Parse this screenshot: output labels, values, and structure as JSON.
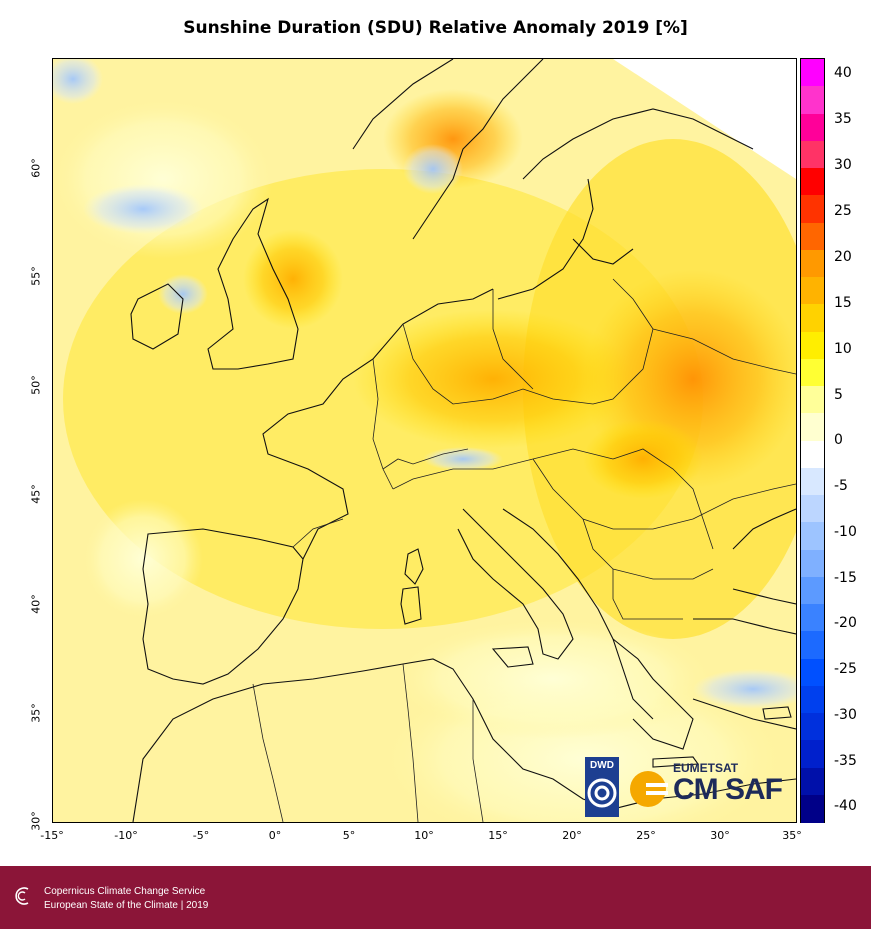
{
  "title": "Sunshine Duration (SDU) Relative Anomaly 2019 [%]",
  "axes": {
    "x_ticks": [
      "-15°",
      "-10°",
      "-5°",
      "0°",
      "5°",
      "10°",
      "15°",
      "20°",
      "25°",
      "30°",
      "35°"
    ],
    "y_ticks": [
      "30°",
      "35°",
      "40°",
      "45°",
      "50°",
      "55°",
      "60°"
    ]
  },
  "colorbar": {
    "labels": [
      "40",
      "35",
      "30",
      "25",
      "20",
      "15",
      "10",
      "5",
      "0",
      "-5",
      "-10",
      "-15",
      "-20",
      "-25",
      "-30",
      "-35",
      "-40"
    ],
    "colors": [
      "#ff00ff",
      "#ff33cc",
      "#ff0099",
      "#ff3366",
      "#ff0000",
      "#ff3300",
      "#ff6600",
      "#ff9900",
      "#ffb300",
      "#ffd200",
      "#ffee00",
      "#ffff33",
      "#ffff99",
      "#ffffd0",
      "#ffffff",
      "#d8e8ff",
      "#bcd6ff",
      "#9dc4ff",
      "#7fb0ff",
      "#5c9aff",
      "#3a82ff",
      "#1c6aff",
      "#0050ff",
      "#0040ee",
      "#0030dd",
      "#0020cc",
      "#0010aa",
      "#000088"
    ]
  },
  "logos": {
    "dwd": "DWD",
    "eumetsat": "EUMETSAT",
    "cmsaf": "CM SAF"
  },
  "footer": {
    "line1": "Copernicus Climate Change Service",
    "line2": "European State of the Climate | 2019"
  }
}
